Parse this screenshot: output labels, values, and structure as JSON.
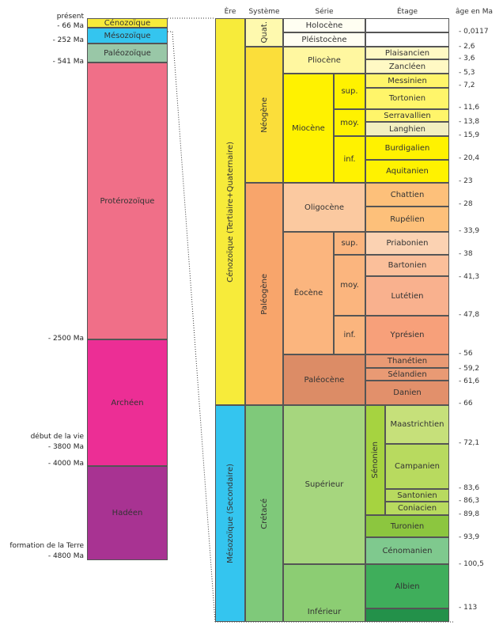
{
  "headers": {
    "ere": "Ère",
    "systeme": "Système",
    "serie": "Série",
    "etage": "Étage",
    "age": "âge en Ma"
  },
  "left": {
    "eons": {
      "cenozoique": "Cénozoïque",
      "mesozoique": "Mésozoïque",
      "paleozoique": "Paléozoïque",
      "proterozoique": "Protérozoïque",
      "archeen": "Archéen",
      "hadeen": "Hadéen"
    },
    "labels": {
      "present": "présent",
      "ma66": "- 66 Ma",
      "ma252": "- 252 Ma",
      "ma541": "- 541 Ma",
      "ma2500": "- 2500 Ma",
      "debut_vie": "début de la vie",
      "ma3800": "- 3800 Ma",
      "ma4000": "- 4000 Ma",
      "formation_terre": "formation de la Terre",
      "ma4800": "- 4800 Ma"
    }
  },
  "eras": {
    "cenozoique": "Cénozoïque (Tertiaire+Quaternaire)",
    "mesozoique": "Mésozoïque (Secondaire)"
  },
  "systems": {
    "quat": "Quat.",
    "neogene": "Néogène",
    "paleogene": "Paléogène",
    "cretace": "Crétacé"
  },
  "series": {
    "holocene": "Holocène",
    "pleistocene": "Pléistocène",
    "pliocene": "Pliocène",
    "miocene": "Miocène",
    "oligocene": "Oligocène",
    "eocene": "Éocène",
    "paleocene": "Paléocène",
    "superieur": "Supérieur",
    "inferieur": "Inférieur"
  },
  "subseries": {
    "mio_sup": "sup.",
    "mio_moy": "moy.",
    "mio_inf": "inf.",
    "eo_sup": "sup.",
    "eo_moy": "moy.",
    "eo_inf": "inf.",
    "senonien": "Sénonien"
  },
  "stages": {
    "plaisancien": "Plaisancien",
    "zancleen": "Zancléen",
    "messinien": "Messinien",
    "tortonien": "Tortonien",
    "serravallien": "Serravallien",
    "langhien": "Langhien",
    "burdigalien": "Burdigalien",
    "aquitanien": "Aquitanien",
    "chattien": "Chattien",
    "rupelien": "Rupélien",
    "priabonien": "Priabonien",
    "bartonien": "Bartonien",
    "lutetien": "Lutétien",
    "ypresien": "Yprésien",
    "thanetien": "Thanétien",
    "selandien": "Sélandien",
    "danien": "Danien",
    "maastrichtien": "Maastrichtien",
    "campanien": "Campanien",
    "santonien": "Santonien",
    "coniacien": "Coniacien",
    "turonien": "Turonien",
    "cenomanien": "Cénomanien",
    "albien": "Albien"
  },
  "ages": {
    "a0": "- 0,0117",
    "a1": "- 2,6",
    "a2": "- 3,6",
    "a3": "- 5,3",
    "a4": "- 7,2",
    "a5": "- 11,6",
    "a6": "- 13,8",
    "a7": "- 15,9",
    "a8": "- 20,4",
    "a9": "- 23",
    "a10": "- 28",
    "a11": "- 33,9",
    "a12": "- 38",
    "a13": "- 41,3",
    "a14": "- 47,8",
    "a15": "- 56",
    "a16": "- 59,2",
    "a17": "- 61,6",
    "a18": "- 66",
    "a19": "- 72,1",
    "a20": "- 83,6",
    "a21": "- 86,3",
    "a22": "- 89,8",
    "a23": "- 93,9",
    "a24": "- 100,5",
    "a25": "- 113"
  },
  "colors": {
    "cenozoic": "#f7eb3a",
    "mesozoic": "#34c5ef",
    "paleozoic": "#99c7a7",
    "proterozoic": "#f06f88",
    "archean": "#ec2e95",
    "hadean": "#a83392",
    "quaternary": "#fef9ae",
    "neogene": "#fbde3a",
    "paleogene": "#f8a56b",
    "cretaceous": "#7fc97a"
  }
}
